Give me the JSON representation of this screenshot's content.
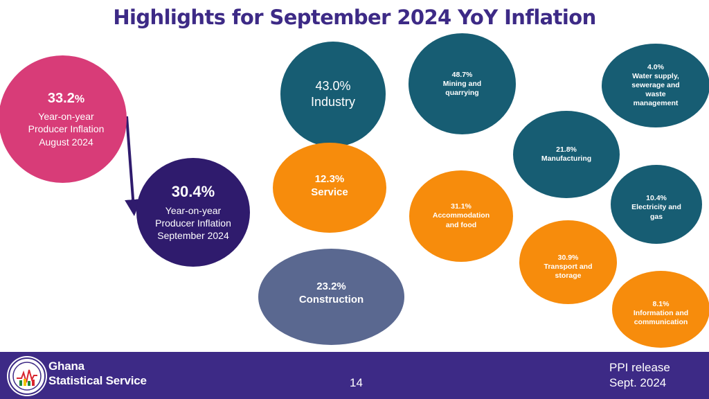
{
  "title": "Highlights for September 2024 YoY Inflation",
  "bubbles": {
    "ppi_august": {
      "pct": "33.2",
      "pct_sym": "%",
      "label": "Year-on-year Producer Inflation August 2024",
      "color": "#d83c78"
    },
    "ppi_september": {
      "pct": "30.4%",
      "label": "Year-on-year Producer Inflation September 2024",
      "color": "#2f1b6d"
    },
    "industry": {
      "pct": "43.0%",
      "label": "Industry",
      "color": "#175d73"
    },
    "service": {
      "pct": "12.3%",
      "label": "Service",
      "color": "#f78c0c"
    },
    "construction": {
      "pct": "23.2%",
      "label": "Construction",
      "color": "#5a6890"
    },
    "mining": {
      "pct": "48.7%",
      "label": "Mining and quarrying",
      "color": "#175d73"
    },
    "water": {
      "pct": "4.0%",
      "label": "Water supply, sewerage and waste management",
      "color": "#175d73"
    },
    "manufacturing": {
      "pct": "21.8%",
      "label": "Manufacturing",
      "color": "#175d73"
    },
    "electricity": {
      "pct": "10.4%",
      "label": "Electricity and gas",
      "color": "#175d73"
    },
    "accommodation": {
      "pct": "31.1%",
      "label": "Accommodation and food",
      "color": "#f78c0c"
    },
    "transport": {
      "pct": "30.9%",
      "label": "Transport and storage",
      "color": "#f78c0c"
    },
    "ict": {
      "pct": "8.1%",
      "label": "Information and communication",
      "color": "#f78c0c"
    }
  },
  "footer": {
    "org_line1": "Ghana",
    "org_line2": "Statistical Service",
    "page_number": "14",
    "release_line1": "PPI release",
    "release_line2": "Sept. 2024",
    "background": "#3d2a86"
  }
}
